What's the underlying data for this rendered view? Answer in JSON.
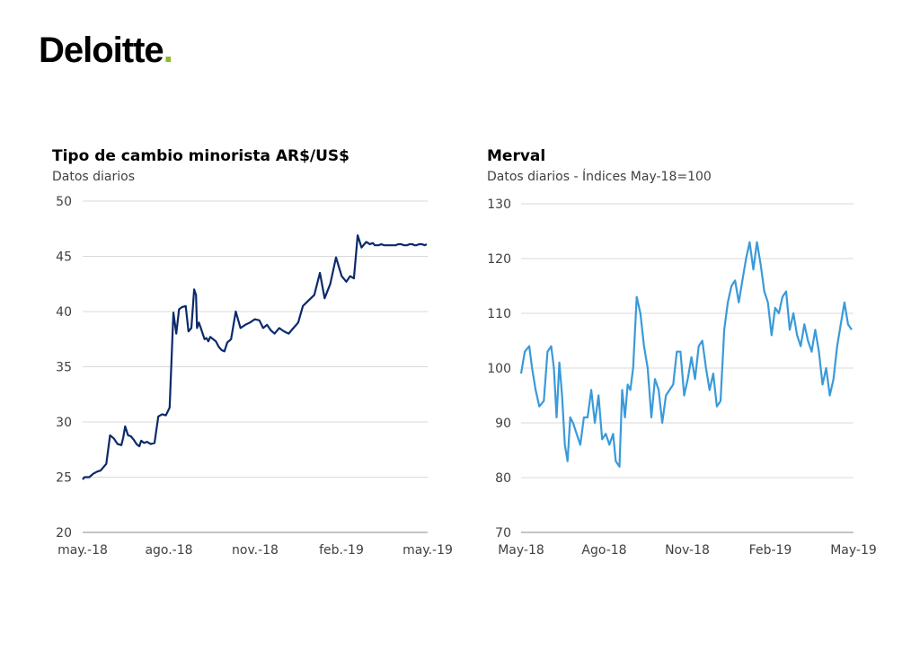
{
  "brand": {
    "name": "Deloitte",
    "dot": ".",
    "dot_color": "#86BC25"
  },
  "chart_data": [
    {
      "type": "line",
      "title": "Tipo de cambio minorista AR$/US$",
      "subtitle": "Datos diarios",
      "x_tick_labels": [
        "may.-18",
        "ago.-18",
        "nov.-18",
        "feb.-19",
        "may.-19"
      ],
      "y_ticks": [
        20,
        25,
        30,
        35,
        40,
        45,
        50
      ],
      "ylim": [
        20,
        50
      ],
      "grid": true,
      "line_color": "#0B2A6B",
      "x_start": "2018-05-01",
      "x_end": "2019-05-01",
      "series": [
        {
          "x": [
            "2018-05-01",
            "2018-05-03",
            "2018-05-08",
            "2018-05-12",
            "2018-05-16",
            "2018-05-20",
            "2018-05-23",
            "2018-05-26",
            "2018-05-30",
            "2018-06-03",
            "2018-06-07",
            "2018-06-11",
            "2018-06-13",
            "2018-06-15",
            "2018-06-18",
            "2018-06-21",
            "2018-06-24",
            "2018-06-27",
            "2018-06-30",
            "2018-07-02",
            "2018-07-05",
            "2018-07-08",
            "2018-07-12",
            "2018-07-16",
            "2018-07-20",
            "2018-07-24",
            "2018-07-28",
            "2018-08-01",
            "2018-08-05",
            "2018-08-08",
            "2018-08-11",
            "2018-08-14",
            "2018-08-18",
            "2018-08-21",
            "2018-08-24",
            "2018-08-27",
            "2018-08-29",
            "2018-08-30",
            "2018-09-01",
            "2018-09-03",
            "2018-09-05",
            "2018-09-07",
            "2018-09-09",
            "2018-09-11",
            "2018-09-13",
            "2018-09-16",
            "2018-09-19",
            "2018-09-22",
            "2018-09-25",
            "2018-09-28",
            "2018-10-01",
            "2018-10-05",
            "2018-10-10",
            "2018-10-15",
            "2018-10-20",
            "2018-10-25",
            "2018-10-30",
            "2018-11-04",
            "2018-11-08",
            "2018-11-12",
            "2018-11-16",
            "2018-11-20",
            "2018-11-25",
            "2018-11-30",
            "2018-12-05",
            "2018-12-10",
            "2018-12-15",
            "2018-12-20",
            "2018-12-26",
            "2019-01-01",
            "2019-01-07",
            "2019-01-12",
            "2019-01-18",
            "2019-01-24",
            "2019-01-30",
            "2019-02-04",
            "2019-02-08",
            "2019-02-12",
            "2019-02-16",
            "2019-02-20",
            "2019-02-25",
            "2019-03-01",
            "2019-03-04",
            "2019-03-06",
            "2019-03-10",
            "2019-03-13",
            "2019-03-16",
            "2019-03-19",
            "2019-03-22",
            "2019-03-25",
            "2019-03-28",
            "2019-03-31",
            "2019-04-03",
            "2019-04-06",
            "2019-04-09",
            "2019-04-12",
            "2019-04-15",
            "2019-04-17",
            "2019-04-19",
            "2019-04-22",
            "2019-04-25",
            "2019-04-28",
            "2019-04-30"
          ],
          "values": [
            24.8,
            25.0,
            25.0,
            25.3,
            25.5,
            25.6,
            25.9,
            26.2,
            28.8,
            28.5,
            28.0,
            27.9,
            28.6,
            29.6,
            28.8,
            28.7,
            28.4,
            28.0,
            27.8,
            28.3,
            28.1,
            28.2,
            28.0,
            28.1,
            30.5,
            30.7,
            30.6,
            31.3,
            39.9,
            38.0,
            40.2,
            40.4,
            40.5,
            38.2,
            38.5,
            42.0,
            41.5,
            38.5,
            39.0,
            38.5,
            38.0,
            37.5,
            37.6,
            37.3,
            37.7,
            37.5,
            37.3,
            36.8,
            36.5,
            36.4,
            37.2,
            37.5,
            40.0,
            38.5,
            38.8,
            39.0,
            39.3,
            39.2,
            38.5,
            38.8,
            38.3,
            38.0,
            38.5,
            38.2,
            38.0,
            38.5,
            39.0,
            40.5,
            41.0,
            41.5,
            43.5,
            41.2,
            42.5,
            44.9,
            43.2,
            42.7,
            43.2,
            43.0,
            46.9,
            45.8,
            46.3,
            46.1,
            46.2,
            46.0,
            46.0,
            46.1,
            46.0,
            46.0,
            46.0,
            46.0,
            46.0,
            46.1,
            46.1,
            46.0,
            46.0,
            46.1,
            46.1,
            46.0,
            46.0,
            46.1,
            46.1,
            46.0,
            46.1
          ]
        }
      ]
    },
    {
      "type": "line",
      "title": "Merval",
      "subtitle": "Datos diarios - Índices May-18=100",
      "x_tick_labels": [
        "May-18",
        "Ago-18",
        "Nov-18",
        "Feb-19",
        "May-19"
      ],
      "y_ticks": [
        70,
        80,
        90,
        100,
        110,
        120,
        130
      ],
      "ylim": [
        70,
        130
      ],
      "grid": true,
      "line_color": "#3A9AD9",
      "x_start": "2018-05-01",
      "x_end": "2019-05-01",
      "series": [
        {
          "x": [
            "2018-05-01",
            "2018-05-05",
            "2018-05-10",
            "2018-05-13",
            "2018-05-17",
            "2018-05-21",
            "2018-05-26",
            "2018-05-30",
            "2018-06-03",
            "2018-06-06",
            "2018-06-09",
            "2018-06-12",
            "2018-06-15",
            "2018-06-18",
            "2018-06-21",
            "2018-06-24",
            "2018-06-27",
            "2018-07-01",
            "2018-07-05",
            "2018-07-09",
            "2018-07-13",
            "2018-07-17",
            "2018-07-21",
            "2018-07-25",
            "2018-07-29",
            "2018-08-02",
            "2018-08-06",
            "2018-08-10",
            "2018-08-13",
            "2018-08-17",
            "2018-08-20",
            "2018-08-23",
            "2018-08-26",
            "2018-08-29",
            "2018-09-01",
            "2018-09-05",
            "2018-09-09",
            "2018-09-13",
            "2018-09-17",
            "2018-09-21",
            "2018-09-25",
            "2018-09-29",
            "2018-10-03",
            "2018-10-07",
            "2018-10-11",
            "2018-10-15",
            "2018-10-19",
            "2018-10-23",
            "2018-10-27",
            "2018-10-31",
            "2018-11-04",
            "2018-11-08",
            "2018-11-12",
            "2018-11-16",
            "2018-11-20",
            "2018-11-24",
            "2018-11-28",
            "2018-12-02",
            "2018-12-06",
            "2018-12-10",
            "2018-12-14",
            "2018-12-18",
            "2018-12-22",
            "2018-12-26",
            "2018-12-30",
            "2019-01-03",
            "2019-01-07",
            "2019-01-11",
            "2019-01-15",
            "2019-01-19",
            "2019-01-23",
            "2019-01-27",
            "2019-01-31",
            "2019-02-04",
            "2019-02-08",
            "2019-02-12",
            "2019-02-16",
            "2019-02-20",
            "2019-02-24",
            "2019-02-28",
            "2019-03-04",
            "2019-03-08",
            "2019-03-12",
            "2019-03-16",
            "2019-03-20",
            "2019-03-24",
            "2019-03-28",
            "2019-04-01",
            "2019-04-05",
            "2019-04-09",
            "2019-04-13",
            "2019-04-17",
            "2019-04-21",
            "2019-04-25",
            "2019-04-29"
          ],
          "values": [
            99,
            103,
            104,
            100,
            96,
            93,
            94,
            103,
            104,
            100,
            91,
            101,
            95,
            86,
            83,
            91,
            90,
            88,
            86,
            91,
            91,
            96,
            90,
            95,
            87,
            88,
            86,
            88,
            83,
            82,
            96,
            91,
            97,
            96,
            100,
            113,
            110,
            104,
            100,
            91,
            98,
            96,
            90,
            95,
            96,
            97,
            103,
            103,
            95,
            98,
            102,
            98,
            104,
            105,
            100,
            96,
            99,
            93,
            94,
            107,
            112,
            115,
            116,
            112,
            116,
            120,
            123,
            118,
            123,
            119,
            114,
            112,
            106,
            111,
            110,
            113,
            114,
            107,
            110,
            106,
            104,
            108,
            105,
            103,
            107,
            103,
            97,
            100,
            95,
            98,
            104,
            108,
            112,
            108,
            107
          ]
        }
      ]
    }
  ]
}
